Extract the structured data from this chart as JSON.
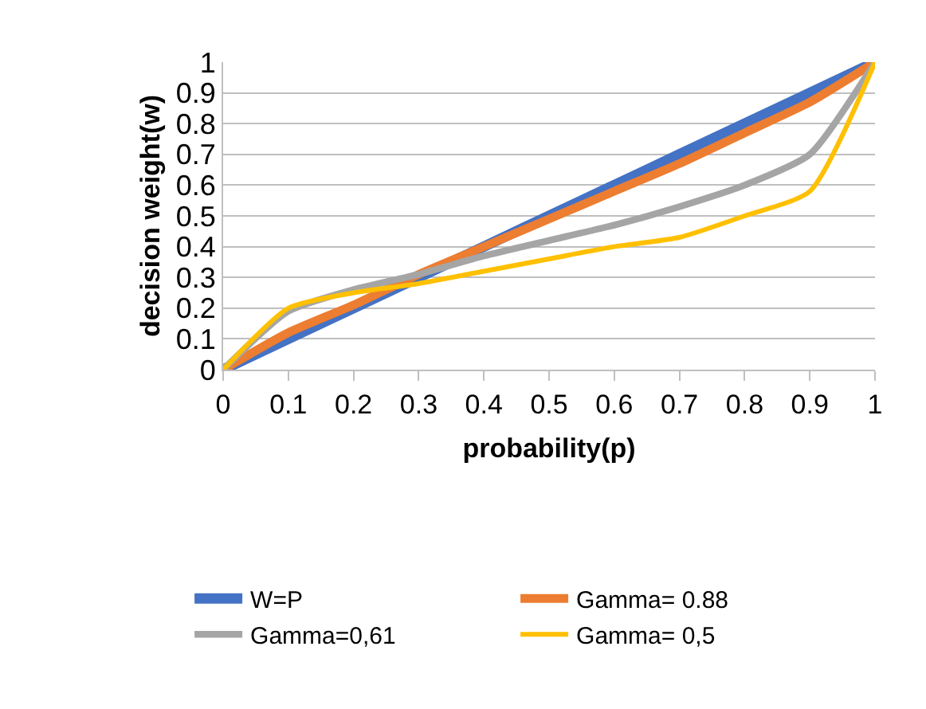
{
  "chart_data": {
    "type": "line",
    "xlabel": "probability(p)",
    "ylabel": "decision weight(w)",
    "x": [
      0,
      0.1,
      0.2,
      0.3,
      0.4,
      0.5,
      0.6,
      0.7,
      0.8,
      0.9,
      1
    ],
    "series": [
      {
        "name": "W=P",
        "color": "#4472c4",
        "values": [
          0,
          0.1,
          0.2,
          0.3,
          0.4,
          0.5,
          0.6,
          0.7,
          0.8,
          0.9,
          1
        ]
      },
      {
        "name": "Gamma= 0.88",
        "color": "#ed7d31",
        "values": [
          0,
          0.12,
          0.21,
          0.31,
          0.4,
          0.49,
          0.58,
          0.67,
          0.77,
          0.87,
          1
        ]
      },
      {
        "name": "Gamma=0,61",
        "color": "#a5a5a5",
        "values": [
          0,
          0.19,
          0.26,
          0.31,
          0.37,
          0.42,
          0.47,
          0.53,
          0.6,
          0.7,
          1
        ]
      },
      {
        "name": "Gamma= 0,5",
        "color": "#ffc000",
        "values": [
          0,
          0.2,
          0.25,
          0.28,
          0.32,
          0.36,
          0.4,
          0.43,
          0.5,
          0.58,
          1
        ]
      }
    ],
    "xlim": [
      0,
      1
    ],
    "xticks": [
      0,
      0.1,
      0.2,
      0.3,
      0.4,
      0.5,
      0.6,
      0.7,
      0.8,
      0.9,
      1
    ],
    "ylim": [
      0,
      1
    ],
    "yticks": [
      0,
      0.1,
      0.2,
      0.3,
      0.4,
      0.5,
      0.6,
      0.7,
      0.8,
      0.9,
      1
    ],
    "grid": "y",
    "legend": "bottom",
    "marker": "none",
    "line_style": "solid"
  }
}
